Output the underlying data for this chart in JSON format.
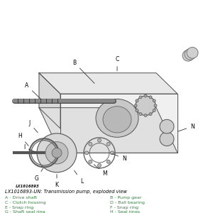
{
  "background_color": "#ffffff",
  "image_id": "LX1016893",
  "caption_line": "LX1016893-UN: Transmission pump, exploded view",
  "legend_items_left": [
    "A - Drive shaft",
    "C - Clutch housing",
    "E - Snap ring",
    "G - Shaft seal ring"
  ],
  "legend_items_right": [
    "B - Pump gear",
    "D - Ball bearing",
    "F - Snap ring",
    "H - Seal rings"
  ],
  "legend_color": "#3a7d44",
  "caption_color": "#000000",
  "id_color": "#000000",
  "fig_width": 3.0,
  "fig_height": 3.0,
  "dpi": 100,
  "diagram_labels_top": [
    "C",
    "B",
    "A",
    "N"
  ],
  "diagram_labels_bottom": [
    "J",
    "H",
    "I",
    "G",
    "K",
    "L",
    "M",
    "N"
  ]
}
